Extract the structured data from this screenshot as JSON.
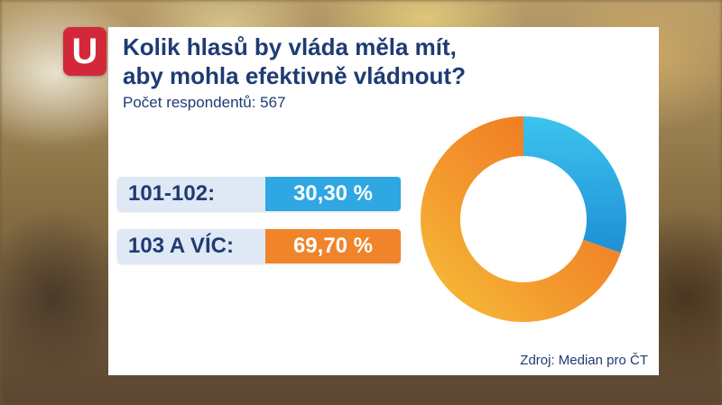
{
  "logo": {
    "letter": "U"
  },
  "chart_data": {
    "type": "pie",
    "title_lines": [
      "Kolik hlasů by vláda měla mít,",
      "aby mohla efektivně vládnout?"
    ],
    "subtitle": "Počet respondentů: 567",
    "categories": [
      "101-102:",
      "103 A VÍC:"
    ],
    "values": [
      30.3,
      69.7
    ],
    "value_labels": [
      "30,30 %",
      "69,70 %"
    ],
    "colors": [
      "#2ea7e3",
      "#f0842a"
    ],
    "source": "Zdroj: Median pro ČT"
  }
}
